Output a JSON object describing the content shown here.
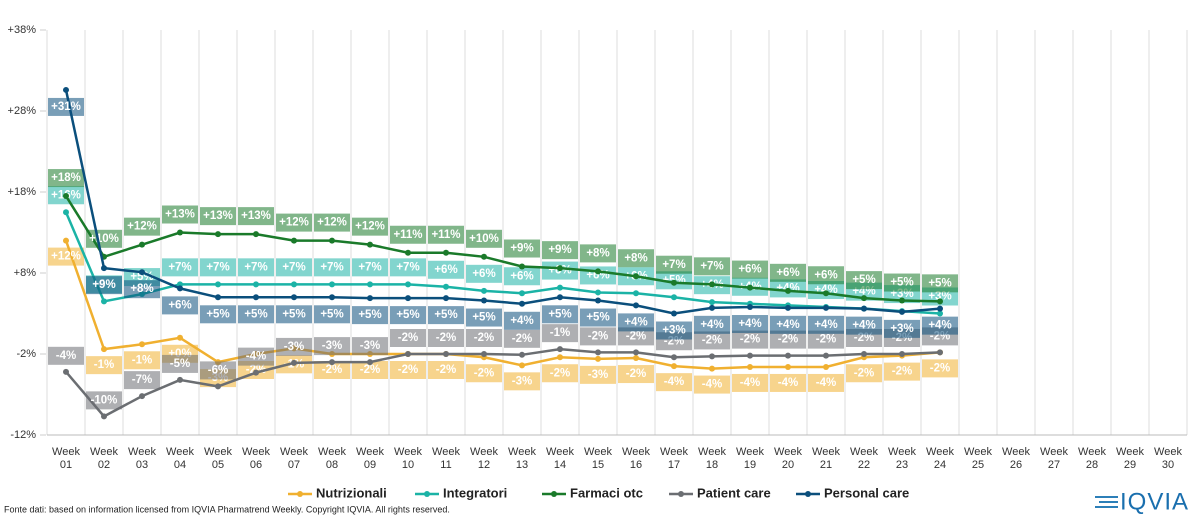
{
  "chart_data": {
    "type": "line",
    "categories": [
      "Week 01",
      "Week 02",
      "Week 03",
      "Week 04",
      "Week 05",
      "Week 06",
      "Week 07",
      "Week 08",
      "Week 09",
      "Week 10",
      "Week 11",
      "Week 12",
      "Week 13",
      "Week 14",
      "Week 15",
      "Week 16",
      "Week 17",
      "Week 18",
      "Week 19",
      "Week 20",
      "Week 21",
      "Week 22",
      "Week 23",
      "Week 24",
      "Week 25",
      "Week 26",
      "Week 27",
      "Week 28",
      "Week 29",
      "Week 30"
    ],
    "ylim": [
      -12,
      38
    ],
    "yticks": [
      {
        "value": -12,
        "label": "-12%"
      },
      {
        "value": -2,
        "label": "-2%"
      },
      {
        "value": 8,
        "label": "+8%"
      },
      {
        "value": 18,
        "label": "+18%"
      },
      {
        "value": 28,
        "label": "+28%"
      },
      {
        "value": 38,
        "label": "+38%"
      }
    ],
    "series": [
      {
        "name": "Nutrizionali",
        "color": "#f0b030",
        "values": [
          12,
          -1.4,
          -0.8,
          0,
          -3,
          -2,
          -1.3,
          -2,
          -2,
          -2,
          -2,
          -2.4,
          -3.4,
          -2.4,
          -2.6,
          -2.5,
          -3.5,
          -3.8,
          -3.6,
          -3.6,
          -3.6,
          -2.4,
          -2.2,
          -1.8,
          null,
          null,
          null,
          null,
          null,
          null
        ],
        "value_labels": [
          "+12%",
          "-1%",
          "-1%",
          "+0%",
          "-3%",
          "-2%",
          "-1%",
          "-2%",
          "-2%",
          "-2%",
          "-2%",
          "-2%",
          "-3%",
          "-2%",
          "-3%",
          "-2%",
          "-4%",
          "-4%",
          "-4%",
          "-4%",
          "-4%",
          "-2%",
          "-2%",
          "-2%",
          null,
          null,
          null,
          null,
          null,
          null
        ]
      },
      {
        "name": "Integratori",
        "color": "#1bb3a6",
        "values": [
          15.5,
          4.5,
          5.4,
          6.6,
          6.6,
          6.6,
          6.6,
          6.6,
          6.6,
          6.6,
          6.3,
          5.8,
          5.5,
          6.2,
          5.6,
          5.5,
          5,
          4.4,
          4.2,
          4,
          3.8,
          3.6,
          3.3,
          3,
          null,
          null,
          null,
          null,
          null,
          null
        ],
        "value_labels": [
          "+16%",
          "+4%",
          "+5%",
          "+7%",
          "+7%",
          "+7%",
          "+7%",
          "+7%",
          "+7%",
          "+7%",
          "+6%",
          "+6%",
          "+6%",
          "+6%",
          "+6%",
          "+6%",
          "+5%",
          "+4%",
          "+4%",
          "+4%",
          "+4%",
          "+4%",
          "+3%",
          "+3%",
          null,
          null,
          null,
          null,
          null,
          null
        ]
      },
      {
        "name": "Farmaci otc",
        "color": "#1a7a2a",
        "values": [
          17.5,
          10,
          11.5,
          13,
          12.8,
          12.8,
          12,
          12,
          11.5,
          10.5,
          10.5,
          10,
          8.8,
          8.6,
          8.2,
          7.6,
          6.8,
          6.6,
          6.2,
          5.8,
          5.5,
          4.9,
          4.6,
          4.5,
          null,
          null,
          null,
          null,
          null,
          null
        ],
        "value_labels": [
          "+18%",
          "+10%",
          "+12%",
          "+13%",
          "+13%",
          "+13%",
          "+12%",
          "+12%",
          "+12%",
          "+11%",
          "+11%",
          "+10%",
          "+9%",
          "+9%",
          "+8%",
          "+8%",
          "+7%",
          "+7%",
          "+6%",
          "+6%",
          "+6%",
          "+5%",
          "+5%",
          "+5%",
          null,
          null,
          null,
          null,
          null,
          null
        ]
      },
      {
        "name": "Patient care",
        "color": "#6b6e72",
        "values": [
          -4.2,
          -9.7,
          -7.2,
          -5.2,
          -6,
          -4.3,
          -3.1,
          -3,
          -3,
          -2,
          -2,
          -2,
          -2.1,
          -1.4,
          -1.8,
          -1.8,
          -2.4,
          -2.3,
          -2.2,
          -2.2,
          -2.2,
          -2,
          -2,
          -1.8,
          null,
          null,
          null,
          null,
          null,
          null
        ],
        "value_labels": [
          "-4%",
          "-10%",
          "-7%",
          "-5%",
          "-6%",
          "-4%",
          "-3%",
          "-3%",
          "-3%",
          "-2%",
          "-2%",
          "-2%",
          "-2%",
          "-1%",
          "-2%",
          "-2%",
          "-2%",
          "-2%",
          "-2%",
          "-2%",
          "-2%",
          "-2%",
          "-2%",
          "-2%",
          null,
          null,
          null,
          null,
          null,
          null
        ]
      },
      {
        "name": "Personal care",
        "color": "#0b4f7c",
        "values": [
          30.6,
          8.6,
          8.1,
          6.1,
          5,
          5,
          5,
          5,
          4.9,
          4.9,
          4.9,
          4.6,
          4.2,
          5,
          4.6,
          4,
          3,
          3.7,
          3.8,
          3.7,
          3.7,
          3.6,
          3.2,
          3.6,
          null,
          null,
          null,
          null,
          null,
          null
        ],
        "value_labels": [
          "+31%",
          "+9%",
          "+8%",
          "+6%",
          "+5%",
          "+5%",
          "+5%",
          "+5%",
          "+5%",
          "+5%",
          "+5%",
          "+5%",
          "+4%",
          "+5%",
          "+5%",
          "+4%",
          "+3%",
          "+4%",
          "+4%",
          "+4%",
          "+4%",
          "+4%",
          "+3%",
          "+4%",
          null,
          null,
          null,
          null,
          null,
          null
        ]
      }
    ]
  },
  "footer": {
    "source": "Fonte dati: based on information licensed from IQVIA Pharmatrend Weekly. Copyright IQVIA. All rights reserved.",
    "logo": "IQVIA"
  }
}
